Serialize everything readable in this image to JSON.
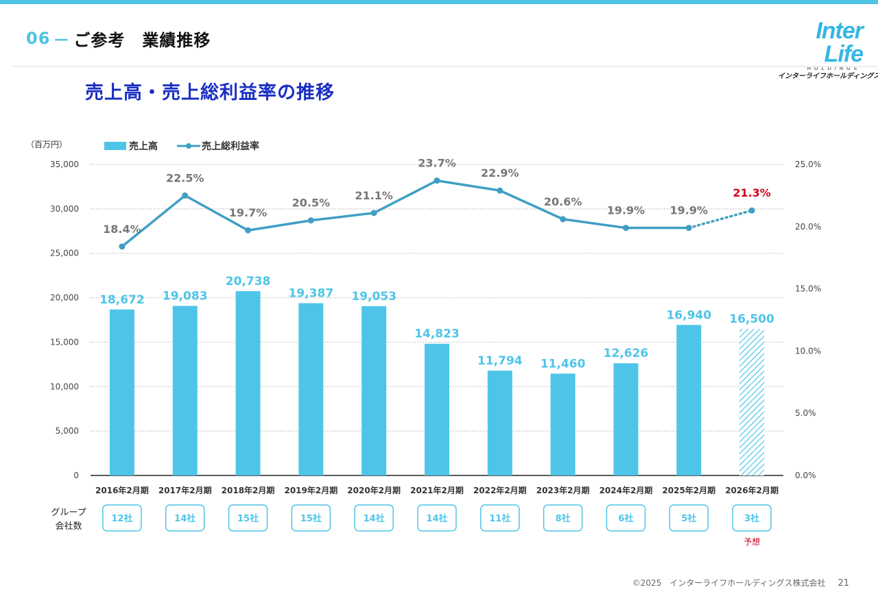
{
  "header": {
    "section_number": "06",
    "section_dash": "－",
    "section_title": "ご参考　業績推移"
  },
  "logo": {
    "main": "Inter Life",
    "sub": "HOLDINGS",
    "kana": "インターライフホールディングス株式会社"
  },
  "chart_title": "売上高・売上総利益率の推移",
  "chart_data": {
    "type": "bar",
    "title": "売上高・売上総利益率の推移",
    "unit_label": "（百万円）",
    "categories": [
      "2016年2月期",
      "2017年2月期",
      "2018年2月期",
      "2019年2月期",
      "2020年2月期",
      "2021年2月期",
      "2022年2月期",
      "2023年2月期",
      "2024年2月期",
      "2025年2月期",
      "2026年2月期"
    ],
    "series": [
      {
        "name": "売上高",
        "type": "bar",
        "axis": "left",
        "values": [
          18672,
          19083,
          20738,
          19387,
          19053,
          14823,
          11794,
          11460,
          12626,
          16940,
          16500
        ],
        "labels": [
          "18,672",
          "19,083",
          "20,738",
          "19,387",
          "19,053",
          "14,823",
          "11,794",
          "11,460",
          "12,626",
          "16,940",
          "16,500"
        ],
        "forecast_index": 10
      },
      {
        "name": "売上総利益率",
        "type": "line",
        "axis": "right",
        "values": [
          18.4,
          22.5,
          19.7,
          20.5,
          21.1,
          23.7,
          22.9,
          20.6,
          19.9,
          19.9,
          21.3
        ],
        "labels": [
          "18.4%",
          "22.5%",
          "19.7%",
          "20.5%",
          "21.1%",
          "23.7%",
          "22.9%",
          "20.6%",
          "19.9%",
          "19.9%",
          "21.3%"
        ],
        "forecast_index": 10
      }
    ],
    "y_left": {
      "min": 0,
      "max": 35000,
      "ticks": [
        "0",
        "5,000",
        "10,000",
        "15,000",
        "20,000",
        "25,000",
        "30,000",
        "35,000"
      ]
    },
    "y_right": {
      "min": 0,
      "max": 25,
      "ticks": [
        "0.0%",
        "5.0%",
        "10.0%",
        "15.0%",
        "20.0%",
        "25.0%"
      ]
    },
    "group_label": [
      "グループ",
      "会社数"
    ],
    "group_companies": [
      "12社",
      "14社",
      "15社",
      "15社",
      "14社",
      "14社",
      "11社",
      "8社",
      "6社",
      "5社",
      "3社"
    ],
    "forecast_note": "予想",
    "colors": {
      "bar": "#4ec5e8",
      "line": "#3f9fc4",
      "forecast_text": "#d0021b",
      "label": "#777777",
      "grid": "#bbbbbb"
    }
  },
  "footer": {
    "copyright": "©2025　インターライフホールディングス株式会社",
    "page": "21"
  }
}
